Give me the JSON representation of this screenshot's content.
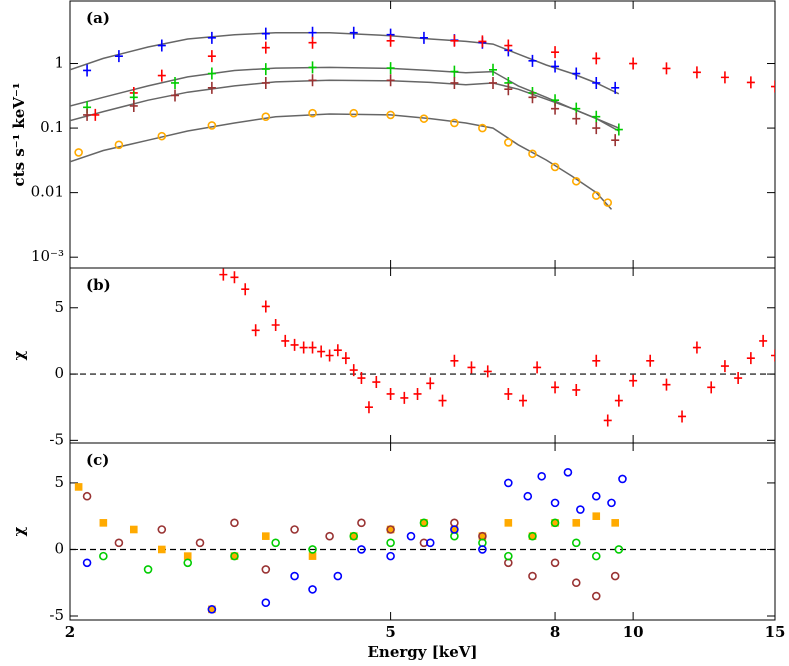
{
  "chart_data": [
    {
      "type": "scatter",
      "annotation": "(a)",
      "ylabel": "cts s⁻¹ keV⁻¹",
      "y_scale": "log",
      "x_scale": "log",
      "xlim": [
        2,
        15
      ],
      "ylim": [
        0.00068,
        9.3
      ],
      "yticks": [
        {
          "value": 0.001,
          "label": "10⁻³"
        },
        0.01,
        0.1,
        1
      ],
      "series": [
        {
          "color": "#666666",
          "style": "line",
          "x": [
            2.0,
            2.2,
            2.5,
            2.8,
            3.2,
            3.6,
            4.2,
            5.0,
            5.6,
            6.2,
            6.7,
            7.2,
            7.8,
            8.4,
            9.0,
            9.6
          ],
          "values": [
            0.8,
            1.2,
            1.8,
            2.4,
            2.8,
            3.0,
            3.0,
            2.7,
            2.4,
            2.2,
            2.0,
            1.4,
            0.95,
            0.7,
            0.5,
            0.34
          ]
        },
        {
          "color": "#666666",
          "style": "line",
          "x": [
            2.0,
            2.2,
            2.5,
            2.8,
            3.2,
            3.6,
            4.2,
            5.0,
            5.6,
            6.2,
            6.7,
            7.2,
            7.8,
            8.4,
            9.0,
            9.6
          ],
          "values": [
            0.22,
            0.3,
            0.45,
            0.62,
            0.78,
            0.85,
            0.87,
            0.84,
            0.78,
            0.72,
            0.75,
            0.45,
            0.3,
            0.2,
            0.14,
            0.09
          ]
        },
        {
          "color": "#666666",
          "style": "line",
          "x": [
            2.0,
            2.2,
            2.5,
            2.8,
            3.2,
            3.6,
            4.2,
            5.0,
            5.6,
            6.2,
            6.7,
            7.2,
            7.8,
            8.4,
            9.0,
            9.6
          ],
          "values": [
            0.13,
            0.18,
            0.27,
            0.36,
            0.45,
            0.52,
            0.55,
            0.54,
            0.51,
            0.47,
            0.5,
            0.4,
            0.28,
            0.2,
            0.14,
            0.1
          ]
        },
        {
          "color": "#666666",
          "style": "line",
          "x": [
            2.0,
            2.2,
            2.5,
            2.8,
            3.2,
            3.6,
            4.2,
            5.0,
            5.6,
            6.2,
            6.7,
            7.2,
            7.8,
            8.4,
            9.0,
            9.4
          ],
          "values": [
            0.03,
            0.045,
            0.065,
            0.09,
            0.12,
            0.15,
            0.165,
            0.16,
            0.14,
            0.12,
            0.1,
            0.055,
            0.032,
            0.018,
            0.01,
            0.0055
          ]
        },
        {
          "color": "#0000ff",
          "marker": "plus",
          "x": [
            2.1,
            2.3,
            2.6,
            3.0,
            3.5,
            4.0,
            4.5,
            5.0,
            5.5,
            6.0,
            6.5,
            7.0,
            7.5,
            8.0,
            8.5,
            9.0,
            9.5
          ],
          "values": [
            0.78,
            1.3,
            1.9,
            2.5,
            2.9,
            3.0,
            3.0,
            2.8,
            2.5,
            2.3,
            2.1,
            1.6,
            1.1,
            0.9,
            0.7,
            0.5,
            0.42
          ]
        },
        {
          "color": "#ff0000",
          "marker": "plus",
          "x": [
            2.15,
            2.4,
            2.6,
            3.0,
            3.5,
            4.0,
            5.0,
            6.0,
            6.5,
            7.0,
            8.0,
            9.0,
            10,
            11,
            12,
            13,
            14,
            15
          ],
          "values": [
            0.16,
            0.35,
            0.65,
            1.3,
            1.76,
            2.1,
            2.25,
            2.25,
            2.2,
            1.9,
            1.5,
            1.2,
            1.0,
            0.84,
            0.73,
            0.61,
            0.51,
            0.44
          ]
        },
        {
          "color": "#00cc00",
          "marker": "plus",
          "x": [
            2.1,
            2.4,
            2.7,
            3.0,
            3.5,
            4.0,
            5.0,
            6.0,
            6.7,
            7.0,
            7.5,
            8.0,
            8.5,
            9.0,
            9.6
          ],
          "values": [
            0.21,
            0.3,
            0.5,
            0.7,
            0.82,
            0.87,
            0.85,
            0.75,
            0.8,
            0.5,
            0.35,
            0.27,
            0.2,
            0.15,
            0.095
          ]
        },
        {
          "color": "#993333",
          "marker": "plus",
          "x": [
            2.1,
            2.4,
            2.7,
            3.0,
            3.5,
            4.0,
            5.0,
            6.0,
            6.7,
            7.0,
            7.5,
            8.0,
            8.5,
            9.0,
            9.5
          ],
          "values": [
            0.16,
            0.22,
            0.32,
            0.42,
            0.5,
            0.55,
            0.55,
            0.5,
            0.5,
            0.4,
            0.3,
            0.2,
            0.14,
            0.1,
            0.065
          ]
        },
        {
          "color": "#ffaa00",
          "marker": "circle",
          "x": [
            2.05,
            2.3,
            2.6,
            3.0,
            3.5,
            4.0,
            4.5,
            5.0,
            5.5,
            6.0,
            6.5,
            7.0,
            7.5,
            8.0,
            8.5,
            9.0,
            9.3
          ],
          "values": [
            0.042,
            0.055,
            0.075,
            0.11,
            0.15,
            0.17,
            0.17,
            0.16,
            0.14,
            0.12,
            0.1,
            0.06,
            0.04,
            0.025,
            0.015,
            0.009,
            0.007
          ]
        }
      ]
    },
    {
      "type": "scatter",
      "annotation": "(b)",
      "ylabel": "χ",
      "x_scale": "log",
      "xlim": [
        2,
        15
      ],
      "ylim": [
        -5.2,
        8
      ],
      "yticks": [
        -5,
        0,
        5
      ],
      "reference_line": 0,
      "series": [
        {
          "color": "#ff0000",
          "marker": "plus",
          "x": [
            3.1,
            3.2,
            3.3,
            3.4,
            3.5,
            3.6,
            3.7,
            3.8,
            3.9,
            4.0,
            4.1,
            4.2,
            4.3,
            4.4,
            4.5,
            4.6,
            4.7,
            4.8,
            5.0,
            5.2,
            5.4,
            5.6,
            5.8,
            6.0,
            6.3,
            6.6,
            7.0,
            7.3,
            7.6,
            8.0,
            8.5,
            9.0,
            9.3,
            9.6,
            10,
            10.5,
            11,
            11.5,
            12,
            12.5,
            13,
            13.5,
            14,
            14.5,
            15
          ],
          "values": [
            7.5,
            7.3,
            6.4,
            3.3,
            5.1,
            3.7,
            2.5,
            2.2,
            2.0,
            2.0,
            1.7,
            1.4,
            1.8,
            1.2,
            0.3,
            -0.3,
            -2.5,
            -0.6,
            -1.5,
            -1.8,
            -1.5,
            -0.7,
            -2.0,
            1.0,
            0.5,
            0.2,
            -1.5,
            -2.0,
            0.5,
            -1.0,
            -1.2,
            1.0,
            -3.5,
            -2.0,
            -0.5,
            1.0,
            -0.8,
            -3.2,
            2.0,
            -1.0,
            0.6,
            -0.3,
            1.2,
            2.5,
            1.4
          ]
        }
      ]
    },
    {
      "type": "scatter",
      "annotation": "(c)",
      "ylabel": "χ",
      "xlabel": "Energy [keV]",
      "x_scale": "log",
      "xlim": [
        2,
        15
      ],
      "ylim": [
        -5.3,
        8
      ],
      "yticks": [
        -5,
        0,
        5
      ],
      "xticks": [
        2,
        5,
        8,
        10,
        15
      ],
      "reference_line": 0,
      "series": [
        {
          "color": "#ffaa00",
          "marker": "square",
          "x": [
            2.05,
            2.2,
            2.4,
            2.6,
            2.8,
            3.0,
            3.2,
            3.5,
            4.0,
            4.5,
            5.0,
            5.5,
            6.0,
            6.5,
            7.0,
            7.5,
            8.0,
            8.5,
            9.0,
            9.5
          ],
          "values": [
            4.7,
            2.0,
            1.5,
            0.0,
            -0.5,
            -4.5,
            -0.5,
            1.0,
            -0.5,
            1.0,
            1.5,
            2.0,
            1.5,
            1.0,
            2.0,
            1.0,
            2.0,
            2.0,
            2.5,
            2.0
          ]
        },
        {
          "color": "#993333",
          "marker": "circle",
          "x": [
            2.1,
            2.3,
            2.6,
            2.9,
            3.2,
            3.5,
            3.8,
            4.2,
            4.6,
            5.0,
            5.5,
            6.0,
            6.5,
            7.0,
            7.5,
            8.0,
            8.5,
            9.0,
            9.5
          ],
          "values": [
            4.0,
            0.5,
            1.5,
            0.5,
            2.0,
            -1.5,
            1.5,
            1.0,
            2.0,
            1.5,
            0.5,
            2.0,
            1.0,
            -1.0,
            -2.0,
            -1.0,
            -2.5,
            -3.5,
            -2.0
          ]
        },
        {
          "color": "#00cc00",
          "marker": "circle",
          "x": [
            2.2,
            2.5,
            2.8,
            3.2,
            3.6,
            4.0,
            4.5,
            5.0,
            5.5,
            6.0,
            6.5,
            7.0,
            7.5,
            8.0,
            8.5,
            9.0,
            9.6
          ],
          "values": [
            -0.5,
            -1.5,
            -1.0,
            -0.5,
            0.5,
            0.0,
            1.0,
            0.5,
            2.0,
            1.0,
            0.5,
            -0.5,
            1.0,
            2.0,
            0.5,
            -0.5,
            0.0
          ]
        },
        {
          "color": "#0000ff",
          "marker": "circle",
          "x": [
            2.1,
            3.0,
            3.5,
            3.8,
            4.0,
            4.3,
            4.6,
            5.0,
            5.3,
            5.6,
            6.0,
            6.5,
            7.0,
            7.4,
            7.7,
            8.0,
            8.3,
            8.6,
            9.0,
            9.4,
            9.7
          ],
          "values": [
            -1.0,
            -4.5,
            -4.0,
            -2.0,
            -3.0,
            -2.0,
            0.0,
            -0.5,
            1.0,
            0.5,
            1.5,
            0.0,
            5.0,
            4.0,
            5.5,
            3.5,
            5.8,
            3.0,
            4.0,
            3.5,
            5.3
          ]
        }
      ]
    }
  ]
}
